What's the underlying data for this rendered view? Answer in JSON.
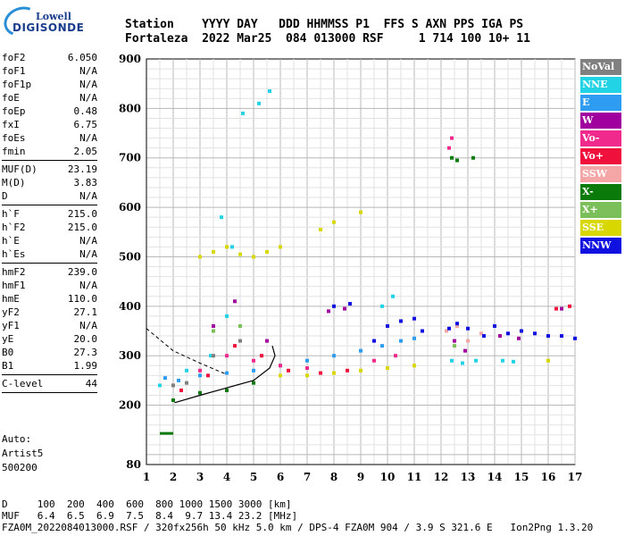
{
  "logo": {
    "line1": "Lowell",
    "line2": "DIGISONDE"
  },
  "header": {
    "row1": "Station    YYYY DAY   DDD HHMMSS P1  FFS S AXN PPS IGA PS",
    "row2": "Fortaleza  2022 Mar25  084 013000 RSF     1 714 100 10+ 11"
  },
  "params_group1": [
    {
      "k": "foF2",
      "v": "6.050"
    },
    {
      "k": "foF1",
      "v": "N/A"
    },
    {
      "k": "foF1p",
      "v": "N/A"
    },
    {
      "k": "foE",
      "v": "N/A"
    },
    {
      "k": "foEp",
      "v": "0.48"
    },
    {
      "k": "fxI",
      "v": "6.75"
    },
    {
      "k": "foEs",
      "v": "N/A"
    },
    {
      "k": "fmin",
      "v": "2.05"
    }
  ],
  "params_group2": [
    {
      "k": "MUF(D)",
      "v": "23.19"
    },
    {
      "k": "M(D)",
      "v": "3.83"
    },
    {
      "k": "D",
      "v": "N/A"
    }
  ],
  "params_group3": [
    {
      "k": "h`F",
      "v": "215.0"
    },
    {
      "k": "h`F2",
      "v": "215.0"
    },
    {
      "k": "h`E",
      "v": "N/A"
    },
    {
      "k": "h`Es",
      "v": "N/A"
    }
  ],
  "params_group4": [
    {
      "k": "hmF2",
      "v": "239.0"
    },
    {
      "k": "hmF1",
      "v": "N/A"
    },
    {
      "k": "hmE",
      "v": "110.0"
    },
    {
      "k": "yF2",
      "v": "27.1"
    },
    {
      "k": "yF1",
      "v": "N/A"
    },
    {
      "k": "yE",
      "v": "20.0"
    },
    {
      "k": "B0",
      "v": "27.3"
    },
    {
      "k": "B1",
      "v": "1.99"
    }
  ],
  "params_group5": [
    {
      "k": "C-level",
      "v": "44"
    }
  ],
  "auto": {
    "line1": "Auto:",
    "line2": "Artist5",
    "line3": "500200"
  },
  "footer": {
    "line1": "D     100  200  400  600  800 1000 1500 3000 [km]",
    "line2": "MUF   6.4  6.5  6.9  7.5  8.4  9.7 13.4 23.2 [MHz]",
    "line3": "FZA0M_2022084013000.RSF / 320fx256h 50 kHz 5.0 km / DPS-4 FZA0M 904 / 3.9 S 321.6 E   Ion2Png 1.3.20"
  },
  "legend": [
    {
      "label": "NoVal",
      "color": "#808080"
    },
    {
      "label": "NNE",
      "color": "#22d3e6"
    },
    {
      "label": "E",
      "color": "#2e9cf0"
    },
    {
      "label": "W",
      "color": "#a0009e"
    },
    {
      "label": "Vo-",
      "color": "#f02a8c"
    },
    {
      "label": "Vo+",
      "color": "#f0103c"
    },
    {
      "label": "SSW",
      "color": "#f4a6a6"
    },
    {
      "label": "X-",
      "color": "#0a7a0a"
    },
    {
      "label": "X+",
      "color": "#7bbf5a"
    },
    {
      "label": "SSE",
      "color": "#d8d800"
    },
    {
      "label": "NNW",
      "color": "#1010e0"
    }
  ],
  "chart_data": {
    "type": "scatter",
    "title": "",
    "xlabel": "",
    "ylabel": "",
    "xlim": [
      1,
      17
    ],
    "ylim": [
      80,
      900
    ],
    "x_ticks": [
      1,
      2,
      3,
      4,
      5,
      6,
      7,
      8,
      9,
      10,
      11,
      12,
      13,
      14,
      15,
      16,
      17
    ],
    "y_ticks": [
      80,
      200,
      300,
      400,
      500,
      600,
      700,
      800,
      900
    ],
    "grid": true,
    "legend_position": "right",
    "series": [
      {
        "name": "NNE",
        "color": "#22d3e6",
        "points": [
          [
            1.5,
            240
          ],
          [
            2.5,
            270
          ],
          [
            3.4,
            300
          ],
          [
            4.0,
            380
          ],
          [
            4.2,
            520
          ],
          [
            3.8,
            580
          ],
          [
            4.6,
            790
          ],
          [
            5.2,
            810
          ],
          [
            5.6,
            835
          ],
          [
            12.4,
            290
          ],
          [
            12.8,
            285
          ],
          [
            13.3,
            290
          ],
          [
            14.3,
            290
          ],
          [
            14.7,
            288
          ],
          [
            10.2,
            420
          ],
          [
            9.8,
            400
          ]
        ]
      },
      {
        "name": "E",
        "color": "#2e9cf0",
        "points": [
          [
            1.7,
            255
          ],
          [
            2.2,
            250
          ],
          [
            3.0,
            260
          ],
          [
            4.0,
            265
          ],
          [
            5.0,
            270
          ],
          [
            6.0,
            280
          ],
          [
            7.0,
            290
          ],
          [
            8.0,
            300
          ],
          [
            9.0,
            310
          ],
          [
            9.8,
            320
          ],
          [
            10.5,
            330
          ],
          [
            11.0,
            335
          ]
        ]
      },
      {
        "name": "W",
        "color": "#a0009e",
        "points": [
          [
            3.5,
            360
          ],
          [
            4.3,
            410
          ],
          [
            5.5,
            330
          ],
          [
            7.8,
            390
          ],
          [
            8.4,
            395
          ],
          [
            12.5,
            330
          ],
          [
            12.9,
            310
          ],
          [
            14.2,
            340
          ],
          [
            14.9,
            335
          ],
          [
            16.5,
            395
          ]
        ]
      },
      {
        "name": "Vo-",
        "color": "#f02a8c",
        "points": [
          [
            2.0,
            240
          ],
          [
            3.0,
            270
          ],
          [
            4.0,
            300
          ],
          [
            5.0,
            290
          ],
          [
            6.0,
            280
          ],
          [
            7.0,
            275
          ],
          [
            9.5,
            290
          ],
          [
            10.3,
            300
          ],
          [
            12.3,
            720
          ],
          [
            12.4,
            740
          ]
        ]
      },
      {
        "name": "Vo+",
        "color": "#f0103c",
        "points": [
          [
            2.3,
            230
          ],
          [
            3.3,
            260
          ],
          [
            4.3,
            320
          ],
          [
            5.3,
            300
          ],
          [
            6.3,
            270
          ],
          [
            7.5,
            265
          ],
          [
            8.5,
            270
          ],
          [
            16.3,
            395
          ],
          [
            16.8,
            400
          ]
        ]
      },
      {
        "name": "SSW",
        "color": "#f4a6a6",
        "points": [
          [
            12.2,
            350
          ],
          [
            12.6,
            360
          ],
          [
            13.0,
            330
          ],
          [
            13.5,
            345
          ]
        ]
      },
      {
        "name": "X-",
        "color": "#0a7a0a",
        "points": [
          [
            2.0,
            210
          ],
          [
            3.0,
            225
          ],
          [
            4.0,
            230
          ],
          [
            5.0,
            245
          ],
          [
            12.4,
            700
          ],
          [
            12.6,
            695
          ],
          [
            13.2,
            700
          ]
        ]
      },
      {
        "name": "X+",
        "color": "#7bbf5a",
        "points": [
          [
            3.5,
            350
          ],
          [
            4.5,
            360
          ],
          [
            12.5,
            320
          ]
        ]
      },
      {
        "name": "SSE",
        "color": "#d8d800",
        "points": [
          [
            3.0,
            500
          ],
          [
            3.5,
            510
          ],
          [
            4.0,
            520
          ],
          [
            4.5,
            505
          ],
          [
            5.0,
            500
          ],
          [
            5.5,
            510
          ],
          [
            6.0,
            520
          ],
          [
            7.5,
            555
          ],
          [
            8.0,
            570
          ],
          [
            9.0,
            590
          ],
          [
            6.0,
            260
          ],
          [
            7.0,
            260
          ],
          [
            8.0,
            265
          ],
          [
            9.0,
            270
          ],
          [
            10.0,
            275
          ],
          [
            11.0,
            280
          ],
          [
            16.0,
            290
          ]
        ]
      },
      {
        "name": "NNW",
        "color": "#1010e0",
        "points": [
          [
            8.0,
            400
          ],
          [
            8.6,
            405
          ],
          [
            9.5,
            330
          ],
          [
            10.0,
            360
          ],
          [
            10.5,
            370
          ],
          [
            11.0,
            375
          ],
          [
            11.3,
            350
          ],
          [
            12.3,
            355
          ],
          [
            12.6,
            365
          ],
          [
            13.0,
            355
          ],
          [
            13.6,
            340
          ],
          [
            14.0,
            360
          ],
          [
            14.5,
            345
          ],
          [
            15.0,
            350
          ],
          [
            15.5,
            345
          ],
          [
            16.0,
            340
          ],
          [
            16.5,
            340
          ],
          [
            17.0,
            335
          ]
        ]
      },
      {
        "name": "NoVal",
        "color": "#808080",
        "points": [
          [
            2.0,
            240
          ],
          [
            2.5,
            245
          ],
          [
            3.5,
            300
          ],
          [
            4.5,
            330
          ]
        ]
      }
    ],
    "small_green_mark": {
      "x": [
        1.5,
        2.0
      ],
      "y": 143
    },
    "profile_curve": [
      [
        2.05,
        205
      ],
      [
        3.0,
        220
      ],
      [
        4.0,
        235
      ],
      [
        5.0,
        250
      ],
      [
        5.6,
        275
      ],
      [
        5.8,
        300
      ],
      [
        5.7,
        320
      ]
    ],
    "extrapolated_profile": [
      [
        1.0,
        355
      ],
      [
        2.0,
        310
      ],
      [
        3.0,
        285
      ],
      [
        4.0,
        262
      ]
    ]
  }
}
